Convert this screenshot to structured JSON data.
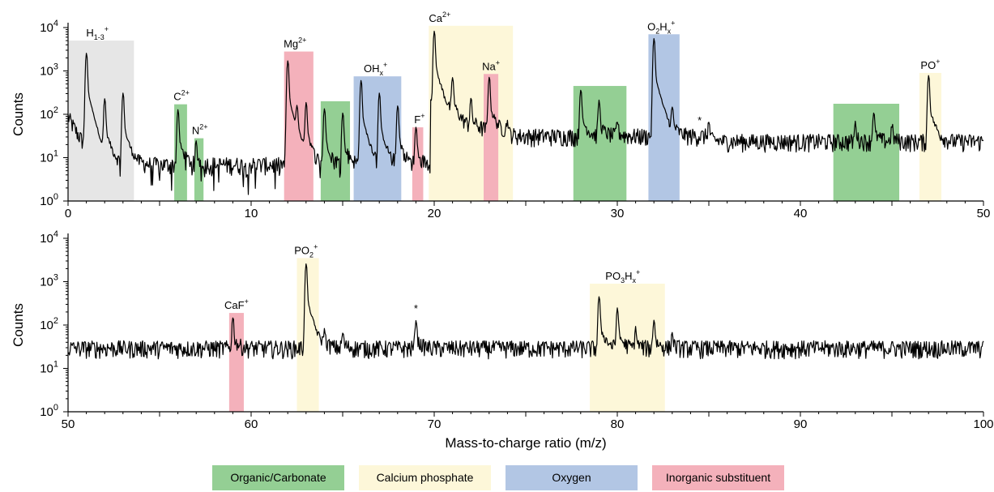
{
  "chart_data": [
    {
      "type": "line",
      "name": "spectrum-top",
      "ylabel": "Counts",
      "xlabel": "",
      "yscale": "log",
      "xlim": [
        0,
        50
      ],
      "ylim": [
        1,
        10000
      ],
      "xticks": [
        0,
        10,
        20,
        30,
        40,
        50
      ],
      "yticks": [
        {
          "value": 1,
          "label": "10",
          "exp": "0"
        },
        {
          "value": 10,
          "label": "10",
          "exp": "1"
        },
        {
          "value": 100,
          "label": "10",
          "exp": "2"
        },
        {
          "value": 1000,
          "label": "10",
          "exp": "3"
        },
        {
          "value": 10000,
          "label": "10",
          "exp": "4"
        }
      ],
      "background": 28,
      "peaks": [
        {
          "x": 1,
          "y": 3000
        },
        {
          "x": 2,
          "y": 250
        },
        {
          "x": 3,
          "y": 350
        },
        {
          "x": 6,
          "y": 140
        },
        {
          "x": 7,
          "y": 18
        },
        {
          "x": 12,
          "y": 2000
        },
        {
          "x": 12.5,
          "y": 130
        },
        {
          "x": 13,
          "y": 200
        },
        {
          "x": 14,
          "y": 150
        },
        {
          "x": 15,
          "y": 120
        },
        {
          "x": 16,
          "y": 700
        },
        {
          "x": 17,
          "y": 350
        },
        {
          "x": 18,
          "y": 180
        },
        {
          "x": 19,
          "y": 50
        },
        {
          "x": 20,
          "y": 9500
        },
        {
          "x": 21,
          "y": 700
        },
        {
          "x": 22,
          "y": 200
        },
        {
          "x": 23,
          "y": 800
        },
        {
          "x": 24,
          "y": 40
        },
        {
          "x": 28,
          "y": 400
        },
        {
          "x": 29,
          "y": 200
        },
        {
          "x": 30,
          "y": 45
        },
        {
          "x": 32,
          "y": 6500
        },
        {
          "x": 33,
          "y": 110
        },
        {
          "x": 35,
          "y": 45
        },
        {
          "x": 43,
          "y": 45
        },
        {
          "x": 44,
          "y": 100
        },
        {
          "x": 45,
          "y": 35
        },
        {
          "x": 47,
          "y": 900
        }
      ],
      "regions": [
        {
          "x0": 0,
          "x1": 3.6,
          "y": 5000,
          "color": "#e6e6e6",
          "label": "H",
          "sub": "1-3",
          "sup": "+",
          "lx": 1.6
        },
        {
          "x0": 5.8,
          "x1": 6.5,
          "y": 170,
          "color": "#94cf94",
          "label": "C",
          "sub": "",
          "sup": "2+",
          "lx": 6.2
        },
        {
          "x0": 6.9,
          "x1": 7.4,
          "y": 28,
          "color": "#94cf94",
          "label": "N",
          "sub": "",
          "sup": "2+",
          "lx": 7.2
        },
        {
          "x0": 11.8,
          "x1": 13.4,
          "y": 2800,
          "color": "#f4b1bb",
          "label": "Mg",
          "sub": "",
          "sup": "2+",
          "lx": 12.4
        },
        {
          "x0": 13.8,
          "x1": 15.4,
          "y": 200,
          "color": "#94cf94",
          "label": "",
          "sub": "",
          "sup": "",
          "lx": 14.6
        },
        {
          "x0": 15.6,
          "x1": 18.2,
          "y": 750,
          "color": "#b2c6e4",
          "label": "OH",
          "sub": "x",
          "sup": "+",
          "lx": 16.8
        },
        {
          "x0": 18.8,
          "x1": 19.4,
          "y": 50,
          "color": "#f4b1bb",
          "label": "F",
          "sub": "",
          "sup": "+",
          "lx": 19.2
        },
        {
          "x0": 19.7,
          "x1": 24.3,
          "y": 11000,
          "color": "#fdf7d9",
          "label": "Ca",
          "sub": "",
          "sup": "2+",
          "lx": 20.3
        },
        {
          "x0": 22.7,
          "x1": 23.5,
          "y": 850,
          "color": "#f4b1bb",
          "label": "Na",
          "sub": "",
          "sup": "+",
          "lx": 23.1
        },
        {
          "x0": 27.6,
          "x1": 30.5,
          "y": 450,
          "color": "#94cf94",
          "label": "",
          "sub": "",
          "sup": "",
          "lx": 29
        },
        {
          "x0": 31.7,
          "x1": 33.4,
          "y": 7000,
          "color": "#b2c6e4",
          "label": "O",
          "sub": "2",
          "sup": "",
          "lx": 32.4
        },
        {
          "x0": 41.8,
          "x1": 45.4,
          "y": 175,
          "color": "#94cf94",
          "label": "",
          "sub": "",
          "sup": "",
          "lx": 43.6
        },
        {
          "x0": 46.5,
          "x1": 47.7,
          "y": 900,
          "color": "#fdf7d9",
          "label": "PO",
          "sub": "",
          "sup": "+",
          "lx": 47.1
        }
      ],
      "extra_labels": [
        {
          "text": "H",
          "sub": "x",
          "sup": "+",
          "attach": "O2"
        }
      ],
      "annotations": [
        {
          "text": "*",
          "x": 34.5,
          "y": 60
        }
      ]
    },
    {
      "type": "line",
      "name": "spectrum-bottom",
      "ylabel": "Counts",
      "xlabel": "Mass-to-charge ratio (m/z)",
      "yscale": "log",
      "xlim": [
        50,
        100
      ],
      "ylim": [
        1,
        10000
      ],
      "xticks": [
        50,
        60,
        70,
        80,
        90,
        100
      ],
      "yticks": [
        {
          "value": 1,
          "label": "10",
          "exp": "0"
        },
        {
          "value": 10,
          "label": "10",
          "exp": "1"
        },
        {
          "value": 100,
          "label": "10",
          "exp": "2"
        },
        {
          "value": 1000,
          "label": "10",
          "exp": "3"
        },
        {
          "value": 10000,
          "label": "10",
          "exp": "4"
        }
      ],
      "background": 30,
      "peaks": [
        {
          "x": 59,
          "y": 140
        },
        {
          "x": 63,
          "y": 3000
        },
        {
          "x": 64,
          "y": 45
        },
        {
          "x": 65,
          "y": 40
        },
        {
          "x": 69,
          "y": 120
        },
        {
          "x": 79,
          "y": 500
        },
        {
          "x": 80,
          "y": 250
        },
        {
          "x": 81,
          "y": 60
        },
        {
          "x": 82,
          "y": 120
        },
        {
          "x": 83,
          "y": 40
        }
      ],
      "regions": [
        {
          "x0": 58.8,
          "x1": 59.6,
          "y": 190,
          "color": "#f4b1bb",
          "label": "CaF",
          "sub": "",
          "sup": "+",
          "lx": 59.2
        },
        {
          "x0": 62.5,
          "x1": 63.7,
          "y": 3500,
          "color": "#fdf7d9",
          "label": "PO",
          "sub": "2",
          "sup": "+",
          "lx": 63
        },
        {
          "x0": 78.5,
          "x1": 82.6,
          "y": 900,
          "color": "#fdf7d9",
          "label": "PO",
          "sub": "3",
          "sup": "",
          "lx": 80.3
        }
      ],
      "extra_labels": [
        {
          "text": "H",
          "sub": "x",
          "sup": "+",
          "attach": "PO3"
        }
      ],
      "annotations": [
        {
          "text": "*",
          "x": 69,
          "y": 200
        }
      ]
    }
  ],
  "legend": [
    {
      "label": "Organic/Carbonate",
      "color": "#94cf94"
    },
    {
      "label": "Calcium phosphate",
      "color": "#fdf7d9"
    },
    {
      "label": "Oxygen",
      "color": "#b2c6e4"
    },
    {
      "label": "Inorganic substituent",
      "color": "#f4b1bb"
    }
  ]
}
